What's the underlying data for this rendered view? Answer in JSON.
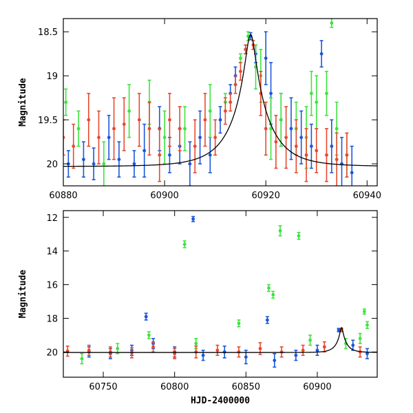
{
  "colors": {
    "blue": "#1a56db",
    "green": "#3ee33e",
    "red": "#e8482e",
    "model": "#000000",
    "frame": "#000000"
  },
  "chart_data": [
    {
      "type": "scatter",
      "panel": "top",
      "xlabel": "",
      "ylabel": "Magnitude",
      "xlim": [
        60880,
        60942
      ],
      "ylim": [
        20.25,
        18.35
      ],
      "y_inverted": true,
      "xticks": [
        60880,
        60900,
        60920,
        60940
      ],
      "xtick_labels": [
        "60880",
        "60900",
        "60920",
        "60940"
      ],
      "yticks": [
        18.5,
        19,
        19.5,
        20
      ],
      "ytick_labels": [
        "18.5",
        "19",
        "19.5",
        "20"
      ],
      "model_curve": {
        "baseline": 20.03,
        "amplitude_mag": 1.5,
        "t0": 60917.0,
        "u0": 0.13,
        "tE": 7.0
      },
      "series": [
        {
          "color": "blue",
          "points": [
            [
              60881,
              20.0,
              0.15
            ],
            [
              60884,
              19.95,
              0.2
            ],
            [
              60886,
              20.0,
              0.18
            ],
            [
              60889,
              19.7,
              0.25
            ],
            [
              60891,
              19.95,
              0.2
            ],
            [
              60894,
              20.0,
              0.15
            ],
            [
              60896,
              19.85,
              0.3
            ],
            [
              60899,
              19.6,
              0.25
            ],
            [
              60901,
              19.9,
              0.2
            ],
            [
              60903,
              19.8,
              0.2
            ],
            [
              60905,
              20.0,
              0.25
            ],
            [
              60907,
              19.7,
              0.3
            ],
            [
              60909,
              19.9,
              0.2
            ],
            [
              60911,
              19.5,
              0.15
            ],
            [
              60913,
              19.2,
              0.1
            ],
            [
              60914,
              19.0,
              0.1
            ],
            [
              60916,
              18.7,
              0.05
            ],
            [
              60917,
              18.55,
              0.04
            ],
            [
              60918,
              18.75,
              0.1
            ],
            [
              60920,
              18.8,
              0.3
            ],
            [
              60921,
              19.2,
              0.35
            ],
            [
              60923,
              19.5,
              0.3
            ],
            [
              60925,
              19.6,
              0.35
            ],
            [
              60927,
              19.7,
              0.3
            ],
            [
              60929,
              19.8,
              0.25
            ],
            [
              60931,
              18.75,
              0.15
            ],
            [
              60933,
              19.8,
              0.3
            ],
            [
              60935,
              20.0,
              0.3
            ],
            [
              60937,
              20.1,
              0.3
            ]
          ]
        },
        {
          "color": "green",
          "points": [
            [
              60880.5,
              19.3,
              0.15
            ],
            [
              60883,
              19.6,
              0.2
            ],
            [
              60888,
              20.0,
              0.25
            ],
            [
              60893,
              19.4,
              0.3
            ],
            [
              60897,
              19.3,
              0.25
            ],
            [
              60900,
              19.7,
              0.3
            ],
            [
              60904,
              19.6,
              0.25
            ],
            [
              60909,
              19.4,
              0.3
            ],
            [
              60912,
              19.3,
              0.1
            ],
            [
              60915,
              18.8,
              0.05
            ],
            [
              60916.5,
              18.55,
              0.05
            ],
            [
              60918,
              18.9,
              0.25
            ],
            [
              60919,
              19.0,
              0.3
            ],
            [
              60921,
              19.6,
              0.35
            ],
            [
              60923,
              19.5,
              0.3
            ],
            [
              60926,
              19.6,
              0.3
            ],
            [
              60928,
              19.7,
              0.35
            ],
            [
              60929,
              19.2,
              0.25
            ],
            [
              60930,
              19.3,
              0.3
            ],
            [
              60932,
              19.2,
              0.25
            ],
            [
              60933,
              18.4,
              0.05
            ],
            [
              60934,
              19.6,
              0.3
            ],
            [
              60936,
              19.9,
              0.25
            ]
          ]
        },
        {
          "color": "red",
          "points": [
            [
              60880,
              19.7,
              0.2
            ],
            [
              60882,
              19.8,
              0.25
            ],
            [
              60885,
              19.5,
              0.3
            ],
            [
              60887,
              19.7,
              0.3
            ],
            [
              60890,
              19.6,
              0.35
            ],
            [
              60892,
              19.55,
              0.3
            ],
            [
              60895,
              19.5,
              0.3
            ],
            [
              60897,
              19.6,
              0.3
            ],
            [
              60899,
              19.9,
              0.3
            ],
            [
              60901,
              19.5,
              0.3
            ],
            [
              60903,
              19.6,
              0.25
            ],
            [
              60906,
              19.8,
              0.3
            ],
            [
              60908,
              19.5,
              0.3
            ],
            [
              60910,
              19.7,
              0.2
            ],
            [
              60912,
              19.4,
              0.15
            ],
            [
              60913,
              19.3,
              0.1
            ],
            [
              60914,
              19.1,
              0.1
            ],
            [
              60915,
              18.95,
              0.1
            ],
            [
              60916,
              18.7,
              0.05
            ],
            [
              60917.5,
              18.65,
              0.05
            ],
            [
              60919,
              19.2,
              0.25
            ],
            [
              60920,
              19.6,
              0.3
            ],
            [
              60922,
              19.75,
              0.3
            ],
            [
              60924,
              19.7,
              0.35
            ],
            [
              60926,
              19.8,
              0.3
            ],
            [
              60928,
              19.9,
              0.3
            ],
            [
              60930,
              19.85,
              0.25
            ],
            [
              60932,
              19.9,
              0.3
            ],
            [
              60934,
              19.95,
              0.3
            ],
            [
              60936,
              19.9,
              0.25
            ]
          ]
        }
      ]
    },
    {
      "type": "scatter",
      "panel": "bottom",
      "xlabel": "HJD-2400000",
      "ylabel": "Magnitude",
      "xlim": [
        60722,
        60942
      ],
      "ylim": [
        21.5,
        11.6
      ],
      "y_inverted": true,
      "xticks": [
        60750,
        60800,
        60850,
        60900
      ],
      "xtick_labels": [
        "60750",
        "60800",
        "60850",
        "60900"
      ],
      "yticks": [
        12,
        14,
        16,
        18,
        20
      ],
      "ytick_labels": [
        "12",
        "14",
        "16",
        "18",
        "20"
      ],
      "series": [
        {
          "color": "blue",
          "points": [
            [
              60740,
              20.0,
              0.3
            ],
            [
              60755,
              20.1,
              0.3
            ],
            [
              60770,
              19.9,
              0.3
            ],
            [
              60780,
              17.9,
              0.2
            ],
            [
              60785,
              19.5,
              0.3
            ],
            [
              60800,
              20.0,
              0.3
            ],
            [
              60813,
              12.1,
              0.15
            ],
            [
              60820,
              20.2,
              0.3
            ],
            [
              60835,
              20.0,
              0.35
            ],
            [
              60850,
              20.3,
              0.4
            ],
            [
              60865,
              18.1,
              0.2
            ],
            [
              60870,
              20.5,
              0.4
            ],
            [
              60885,
              20.2,
              0.3
            ],
            [
              60900,
              19.9,
              0.3
            ],
            [
              60915,
              18.7,
              0.1
            ],
            [
              60925,
              19.6,
              0.3
            ],
            [
              60935,
              20.1,
              0.3
            ]
          ]
        },
        {
          "color": "green",
          "points": [
            [
              60735,
              20.4,
              0.3
            ],
            [
              60760,
              19.8,
              0.3
            ],
            [
              60782,
              19.0,
              0.2
            ],
            [
              60807,
              13.6,
              0.2
            ],
            [
              60815,
              19.5,
              0.3
            ],
            [
              60845,
              18.3,
              0.2
            ],
            [
              60866,
              16.2,
              0.2
            ],
            [
              60869,
              16.6,
              0.2
            ],
            [
              60874,
              12.8,
              0.3
            ],
            [
              60887,
              13.1,
              0.2
            ],
            [
              60895,
              19.3,
              0.3
            ],
            [
              60920,
              19.5,
              0.3
            ],
            [
              60930,
              19.2,
              0.3
            ],
            [
              60933,
              17.6,
              0.15
            ],
            [
              60935,
              18.4,
              0.2
            ]
          ]
        },
        {
          "color": "red",
          "points": [
            [
              60725,
              19.95,
              0.3
            ],
            [
              60740,
              19.9,
              0.3
            ],
            [
              60755,
              20.0,
              0.3
            ],
            [
              60770,
              20.05,
              0.3
            ],
            [
              60785,
              19.7,
              0.3
            ],
            [
              60800,
              20.1,
              0.3
            ],
            [
              60815,
              20.0,
              0.35
            ],
            [
              60830,
              19.9,
              0.3
            ],
            [
              60845,
              20.0,
              0.3
            ],
            [
              60860,
              19.8,
              0.35
            ],
            [
              60875,
              20.0,
              0.3
            ],
            [
              60890,
              19.9,
              0.3
            ],
            [
              60905,
              19.7,
              0.3
            ],
            [
              60917,
              18.7,
              0.1
            ],
            [
              60930,
              20.0,
              0.3
            ]
          ]
        }
      ],
      "model_curve": {
        "baseline": 20.03,
        "amplitude_mag": 1.5,
        "t0": 60917.0,
        "u0": 0.13,
        "tE": 7.0
      }
    }
  ]
}
